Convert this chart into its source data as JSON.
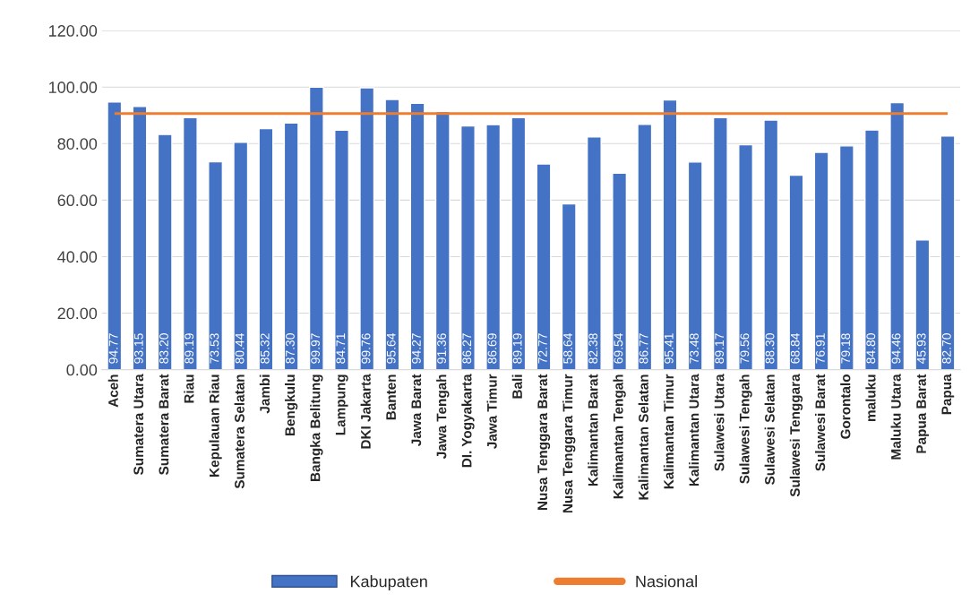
{
  "chart_data": {
    "type": "bar",
    "categories": [
      "Aceh",
      "Sumatera Utara",
      "Sumatera Barat",
      "Riau",
      "Kepulauan Riau",
      "Sumatera Selatan",
      "Jambi",
      "Bengkulu",
      "Bangka Belitung",
      "Lampung",
      "DKI Jakarta",
      "Banten",
      "Jawa Barat",
      "Jawa Tengah",
      "DI. Yogyakarta",
      "Jawa Timur",
      "Bali",
      "Nusa Tenggara Barat",
      "Nusa Tenggara Timur",
      "Kalimantan Barat",
      "Kalimantan Tengah",
      "Kalimantan Selatan",
      "Kalimantan Timur",
      "Kalimantan Utara",
      "Sulawesi Utara",
      "Sulawesi Tengah",
      "Sulawesi Selatan",
      "Sulawesi Tenggara",
      "Sulawesi Barat",
      "Gorontalo",
      "maluku",
      "Maluku Utara",
      "Papua Barat",
      "Papua"
    ],
    "series": [
      {
        "name": "Kabupaten",
        "color": "#4472c4",
        "value_labels": [
          "94.77",
          "93.15",
          "83.20",
          "89.19",
          "73.53",
          "80.44",
          "85.32",
          "87.30",
          "99.97",
          "84.71",
          "99.76",
          "95.64",
          "94.27",
          "91.36",
          "86.27",
          "86.69",
          "89.19",
          "72.77",
          "58.64",
          "82.38",
          "69.54",
          "86.77",
          "95.41",
          "73.48",
          "89.17",
          "79.56",
          "88.30",
          "68.84",
          "76.91",
          "79.18",
          "84.80",
          "94.46",
          "45.93",
          "82.70"
        ],
        "values": [
          94.77,
          93.15,
          83.2,
          89.19,
          73.53,
          80.44,
          85.32,
          87.3,
          99.97,
          84.71,
          99.76,
          95.64,
          94.27,
          91.36,
          86.27,
          86.69,
          89.19,
          72.77,
          58.64,
          82.38,
          69.54,
          86.77,
          95.41,
          73.48,
          89.17,
          79.56,
          88.3,
          68.84,
          76.91,
          79.18,
          84.8,
          94.46,
          45.93,
          82.7
        ]
      },
      {
        "name": "Nasional",
        "type": "line",
        "color": "#ed7d31",
        "values": [
          90.6,
          90.6,
          90.6,
          90.6,
          90.6,
          90.6,
          90.6,
          90.6,
          90.6,
          90.6,
          90.6,
          90.6,
          90.6,
          90.6,
          90.6,
          90.6,
          90.6,
          90.6,
          90.6,
          90.6,
          90.6,
          90.6,
          90.6,
          90.6,
          90.6,
          90.6,
          90.6,
          90.6,
          90.6,
          90.6,
          90.6,
          90.6,
          90.6,
          90.6
        ]
      }
    ],
    "ylim": [
      0,
      120
    ],
    "yticks": [
      {
        "value": 0,
        "label": "0.00"
      },
      {
        "value": 20,
        "label": "20.00"
      },
      {
        "value": 40,
        "label": "40.00"
      },
      {
        "value": 60,
        "label": "60.00"
      },
      {
        "value": 80,
        "label": "80.00"
      },
      {
        "value": 100,
        "label": "100.00"
      },
      {
        "value": 120,
        "label": "120.00"
      }
    ],
    "grid": "y",
    "legend": "bottom"
  }
}
